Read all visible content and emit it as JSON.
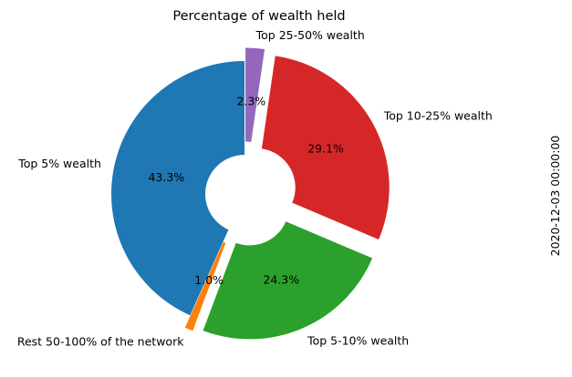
{
  "chart_data": {
    "type": "pie",
    "donut": true,
    "title": "Percentage of wealth held",
    "side_label": "2020-12-03 00:00:00",
    "start_angle_deg": 90,
    "direction": "counterclockwise",
    "slices": [
      {
        "label": "Top 5% wealth",
        "value": 43.3,
        "pct_label": "43.3%",
        "color": "#1f77b4",
        "exploded": false
      },
      {
        "label": "Rest 50-100% of the network",
        "value": 1.0,
        "pct_label": "1.0%",
        "color": "#ff7f0e",
        "exploded": true
      },
      {
        "label": "Top 5-10% wealth",
        "value": 24.3,
        "pct_label": "24.3%",
        "color": "#2ca02c",
        "exploded": true
      },
      {
        "label": "Top 10-25% wealth",
        "value": 29.1,
        "pct_label": "29.1%",
        "color": "#d62728",
        "exploded": true
      },
      {
        "label": "Top 25-50% wealth",
        "value": 2.3,
        "pct_label": "2.3%",
        "color": "#9467bd",
        "exploded": true
      }
    ]
  }
}
